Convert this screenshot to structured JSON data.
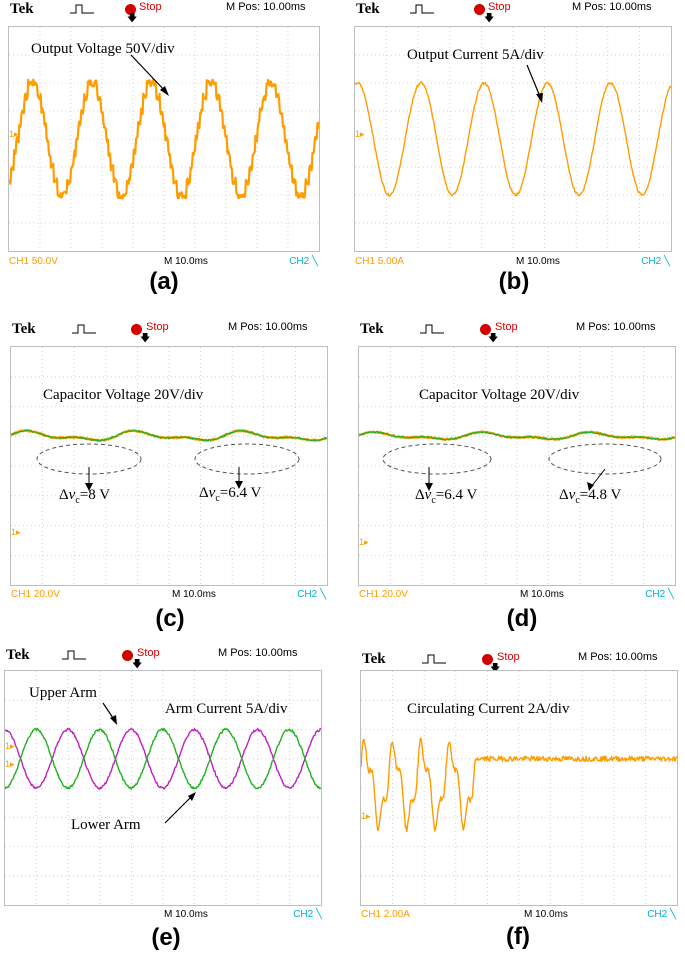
{
  "common": {
    "brand": "Tek",
    "stop_label": "Stop",
    "mpos_label": "M Pos: 10.00ms",
    "timebase": "M 10.0ms",
    "ch2_label": "CH2 ╲",
    "trigger_marker": "1▸",
    "delta_prefix": "Δ",
    "delta_var": "v",
    "delta_sub": "c"
  },
  "colors": {
    "ch1": "#ff9c00",
    "green": "#22b022",
    "magenta": "#c020c0",
    "stop": "#d40000",
    "ch2": "#00b0c8"
  },
  "panels": [
    {
      "caption": "(a)",
      "ch1_scale": "CH1  50.0V",
      "annotation": "Output Voltage 50V/div"
    },
    {
      "caption": "(b)",
      "ch1_scale": "CH1  5.00A",
      "annotation": "Output Current 5A/div"
    },
    {
      "caption": "(c)",
      "ch1_scale": "CH1  20.0V",
      "annotation": "Capacitor Voltage 20V/div",
      "deltas": [
        "=8 V",
        "=6.4 V"
      ]
    },
    {
      "caption": "(d)",
      "ch1_scale": "CH1  20.0V",
      "annotation": "Capacitor Voltage 20V/div",
      "deltas": [
        "=6.4 V",
        "=4.8 V"
      ]
    },
    {
      "caption": "(e)",
      "ch1_scale": "",
      "annotation": "Arm Current 5A/div",
      "upper_label": "Upper Arm",
      "lower_label": "Lower Arm"
    },
    {
      "caption": "(f)",
      "ch1_scale": "CH1  2.00A",
      "annotation": "Circulating Current 2A/div"
    }
  ],
  "chart_data": [
    {
      "type": "line",
      "title": "Output Voltage 50V/div",
      "x_unit": "div (10.0 ms/div)",
      "xlim": [
        0,
        10
      ],
      "ylim": [
        -4,
        4
      ],
      "series": [
        {
          "name": "",
          "waveform": "staircase sine",
          "amplitude_div": 2.0,
          "cycles": 5.2,
          "color": "#ff9c00"
        }
      ]
    },
    {
      "type": "line",
      "title": "Output Current 5A/div",
      "x_unit": "div (10.0 ms/div)",
      "xlim": [
        0,
        10
      ],
      "ylim": [
        -4,
        4
      ],
      "series": [
        {
          "name": "",
          "waveform": "sine",
          "amplitude_div": 2.0,
          "cycles": 5.0,
          "color": "#ff9c00"
        }
      ]
    },
    {
      "type": "line",
      "title": "Capacitor Voltage 20V/div",
      "x_unit": "div (10.0 ms/div)",
      "xlim": [
        0,
        10
      ],
      "ylim": [
        -4,
        4
      ],
      "annotations": [
        "Δvc=8 V",
        "Δvc=6.4 V"
      ],
      "series": [
        {
          "name": "",
          "waveform": "capacitor ripple",
          "level_div": 1.0,
          "ripple_V": [
            8,
            6.4
          ],
          "color": "#22b022"
        }
      ]
    },
    {
      "type": "line",
      "title": "Capacitor Voltage 20V/div",
      "x_unit": "div (10.0 ms/div)",
      "xlim": [
        0,
        10
      ],
      "ylim": [
        -4,
        4
      ],
      "annotations": [
        "Δvc=6.4 V",
        "Δvc=4.8 V"
      ],
      "series": [
        {
          "name": "",
          "waveform": "capacitor ripple",
          "level_div": 1.0,
          "ripple_V": [
            6.4,
            4.8
          ],
          "color": "#22b022"
        }
      ]
    },
    {
      "type": "line",
      "title": "Arm Current 5A/div",
      "x_unit": "div (10.0 ms/div)",
      "xlim": [
        0,
        10
      ],
      "ylim": [
        -4,
        4
      ],
      "series": [
        {
          "name": "Upper Arm",
          "waveform": "sine + dc offset",
          "amplitude_div": 1.0,
          "cycles": 5.0,
          "color": "#c020c0"
        },
        {
          "name": "Lower Arm",
          "waveform": "sine + dc offset",
          "amplitude_div": 1.0,
          "cycles": 5.0,
          "color": "#22b022"
        }
      ]
    },
    {
      "type": "line",
      "title": "Circulating Current 2A/div",
      "x_unit": "div (10.0 ms/div)",
      "xlim": [
        0,
        10
      ],
      "ylim": [
        -4,
        4
      ],
      "series": [
        {
          "name": "",
          "waveform": "oscillation then suppressed at ~3.5 div",
          "amplitude_div": 1.2,
          "dc_after_div": 1.0,
          "color": "#ff9c00"
        }
      ]
    }
  ]
}
